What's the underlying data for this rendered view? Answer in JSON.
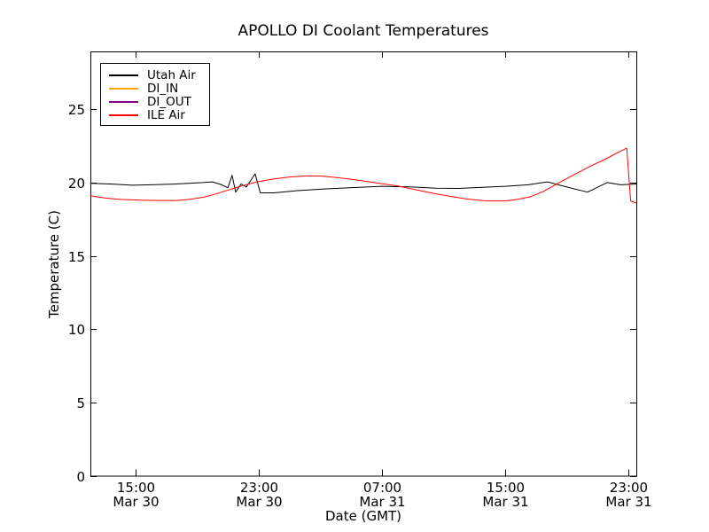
{
  "chart_data": {
    "type": "line",
    "title": "APOLLO DI Coolant Temperatures",
    "xlabel": "Date (GMT)",
    "ylabel": "Temperature (C)",
    "x_axis_unit": "hours since Mar 30 00:00 GMT",
    "xlim": [
      12.07,
      47.52
    ],
    "ylim": [
      0,
      28.95
    ],
    "grid": false,
    "legend_position": "upper left",
    "yticks": [
      0,
      5,
      10,
      15,
      20,
      25
    ],
    "xticks": [
      {
        "hour": 15,
        "time": "15:00",
        "date": "Mar 30"
      },
      {
        "hour": 23,
        "time": "23:00",
        "date": "Mar 30"
      },
      {
        "hour": 31,
        "time": "07:00",
        "date": "Mar 31"
      },
      {
        "hour": 39,
        "time": "15:00",
        "date": "Mar 31"
      },
      {
        "hour": 47,
        "time": "23:00",
        "date": "Mar 31"
      }
    ],
    "series": [
      {
        "name": "Utah Air",
        "color": "#000000",
        "points": [
          [
            12.07,
            19.95
          ],
          [
            13.5,
            19.9
          ],
          [
            14.8,
            19.82
          ],
          [
            16.0,
            19.85
          ],
          [
            17.5,
            19.9
          ],
          [
            19.4,
            20.0
          ],
          [
            20.0,
            20.05
          ],
          [
            20.6,
            19.85
          ],
          [
            21.0,
            19.65
          ],
          [
            21.27,
            20.5
          ],
          [
            21.5,
            19.35
          ],
          [
            21.85,
            19.9
          ],
          [
            22.2,
            19.7
          ],
          [
            22.77,
            20.6
          ],
          [
            23.1,
            19.3
          ],
          [
            24.0,
            19.3
          ],
          [
            25.5,
            19.45
          ],
          [
            27.5,
            19.58
          ],
          [
            29.5,
            19.68
          ],
          [
            31.0,
            19.75
          ],
          [
            33.0,
            19.7
          ],
          [
            34.5,
            19.62
          ],
          [
            36.0,
            19.6
          ],
          [
            37.5,
            19.68
          ],
          [
            39.0,
            19.75
          ],
          [
            40.5,
            19.85
          ],
          [
            41.76,
            20.05
          ],
          [
            43.0,
            19.7
          ],
          [
            44.35,
            19.35
          ],
          [
            45.62,
            20.0
          ],
          [
            46.5,
            19.85
          ],
          [
            47.52,
            19.9
          ]
        ]
      },
      {
        "name": "DI_IN",
        "color": "#ffa500",
        "points": []
      },
      {
        "name": "DI_OUT",
        "color": "#800080",
        "points": []
      },
      {
        "name": "ILE Air",
        "color": "#ff0000",
        "points": [
          [
            12.07,
            19.1
          ],
          [
            13.0,
            18.95
          ],
          [
            14.0,
            18.85
          ],
          [
            15.4,
            18.8
          ],
          [
            16.5,
            18.78
          ],
          [
            17.7,
            18.78
          ],
          [
            18.5,
            18.85
          ],
          [
            19.4,
            19.0
          ],
          [
            20.3,
            19.25
          ],
          [
            21.2,
            19.55
          ],
          [
            22.0,
            19.8
          ],
          [
            22.9,
            20.05
          ],
          [
            24.0,
            20.25
          ],
          [
            25.0,
            20.38
          ],
          [
            26.0,
            20.45
          ],
          [
            27.0,
            20.45
          ],
          [
            28.0,
            20.35
          ],
          [
            29.2,
            20.2
          ],
          [
            30.0,
            20.08
          ],
          [
            31.0,
            19.92
          ],
          [
            32.0,
            19.78
          ],
          [
            32.7,
            19.62
          ],
          [
            34.4,
            19.25
          ],
          [
            35.5,
            19.05
          ],
          [
            36.5,
            18.88
          ],
          [
            37.8,
            18.75
          ],
          [
            39.0,
            18.75
          ],
          [
            39.8,
            18.85
          ],
          [
            40.7,
            19.05
          ],
          [
            41.5,
            19.4
          ],
          [
            42.6,
            20.05
          ],
          [
            43.5,
            20.55
          ],
          [
            44.6,
            21.15
          ],
          [
            45.5,
            21.6
          ],
          [
            46.5,
            22.15
          ],
          [
            46.9,
            22.35
          ],
          [
            47.15,
            18.75
          ],
          [
            47.52,
            18.6
          ]
        ]
      }
    ]
  }
}
